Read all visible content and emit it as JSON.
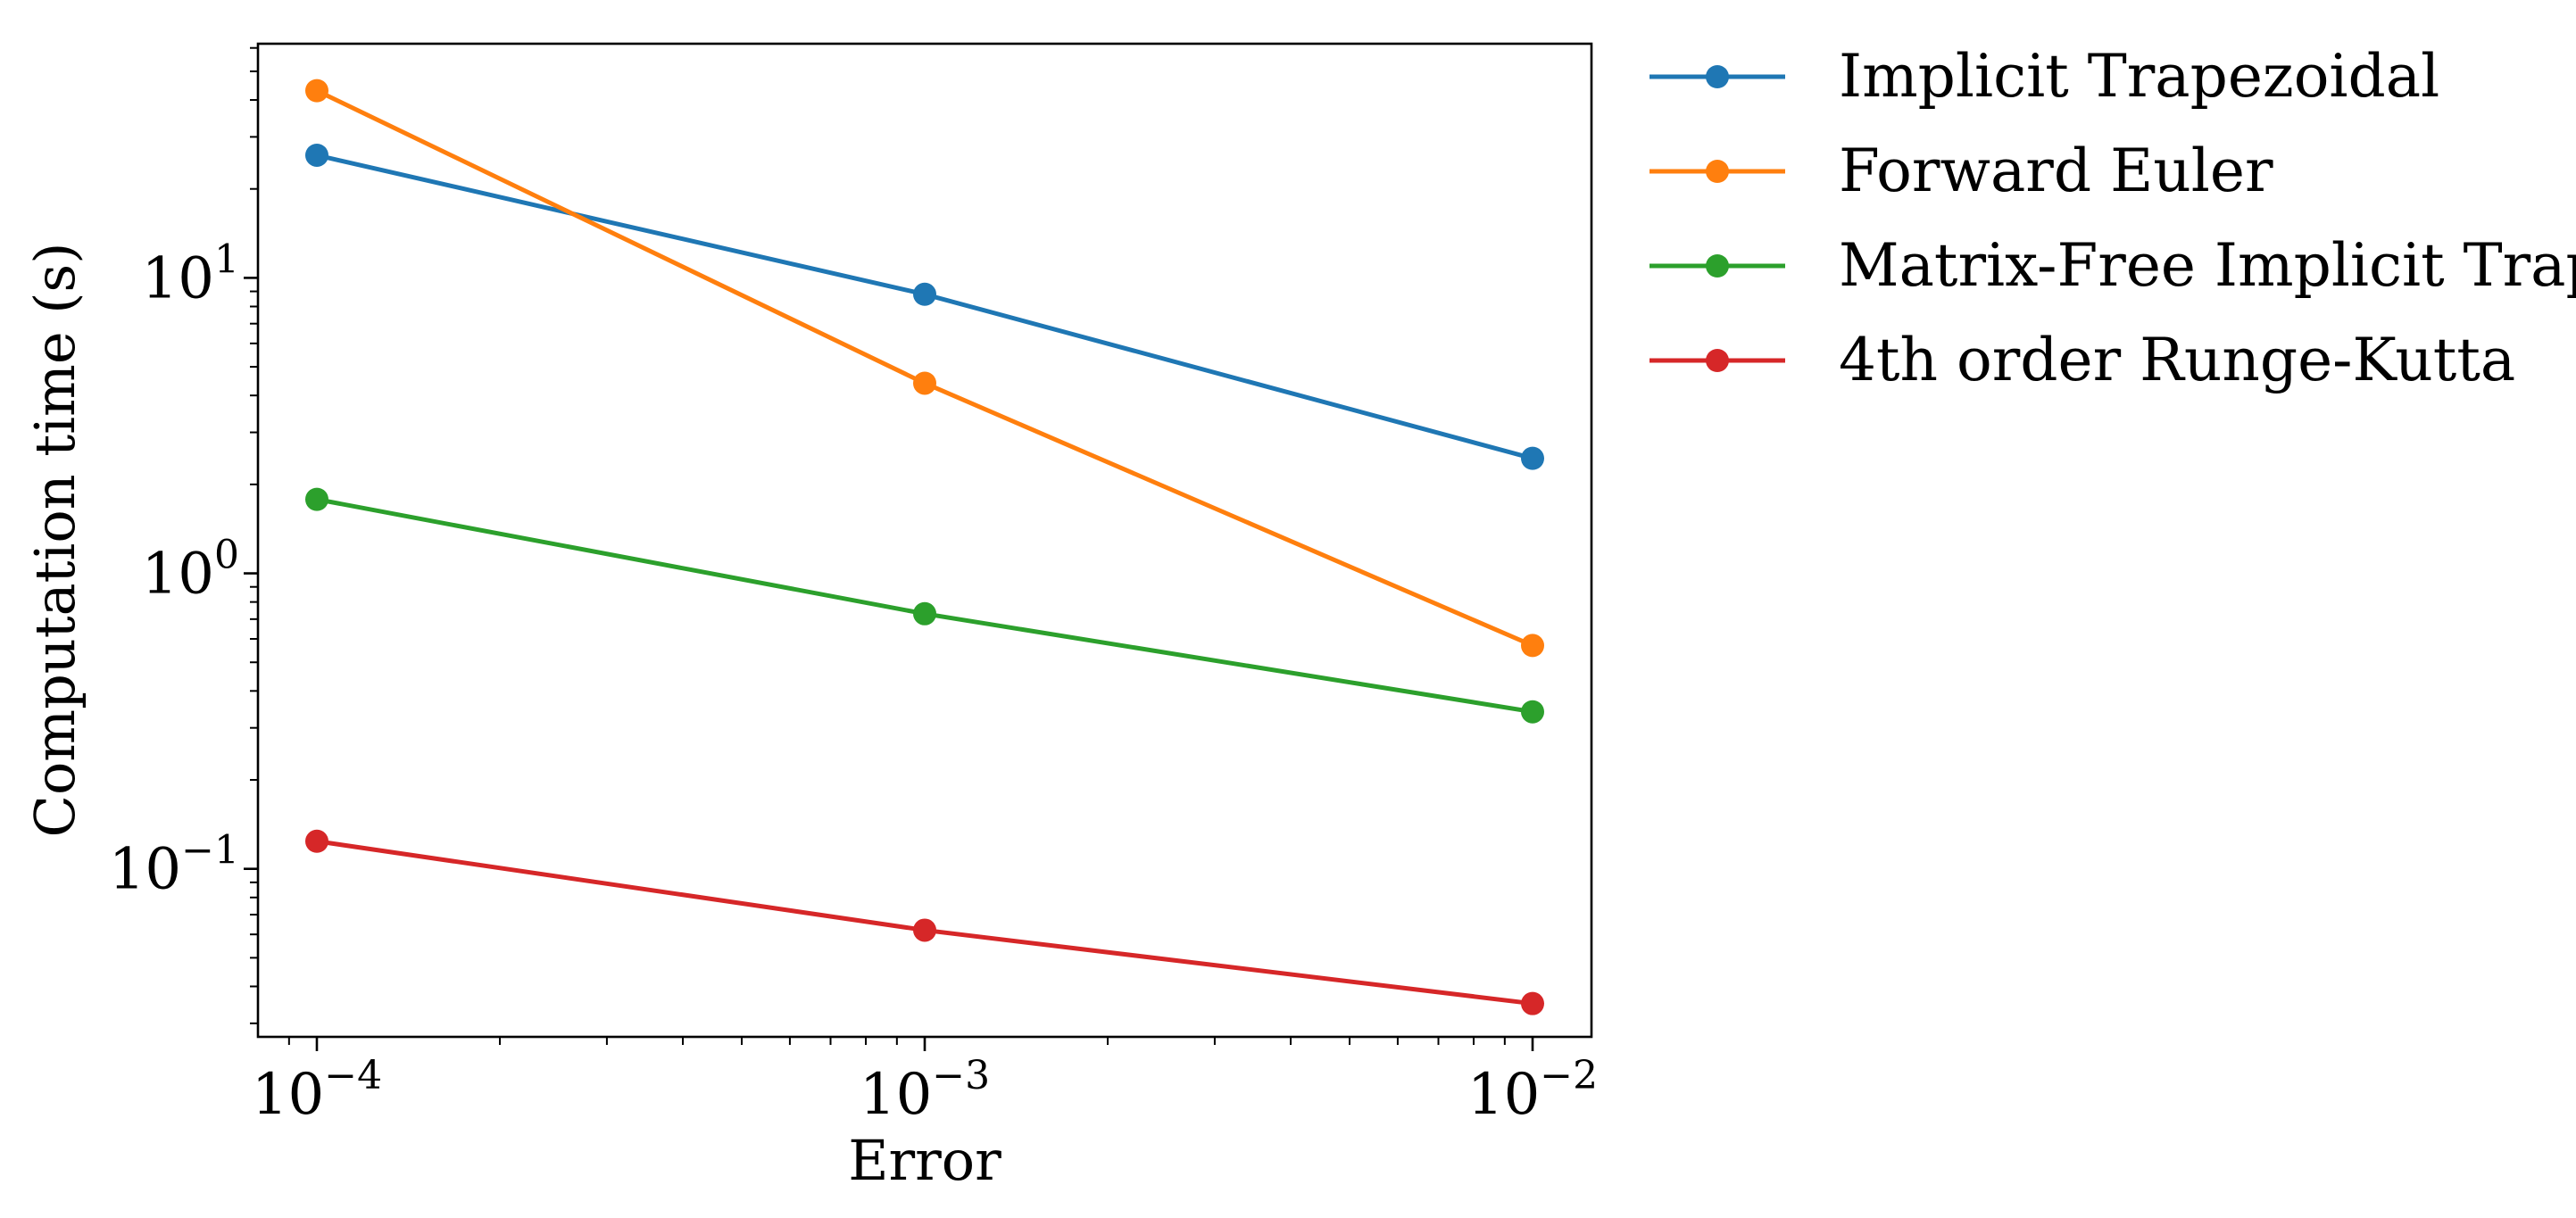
{
  "chart_data": {
    "type": "line",
    "title": "",
    "xlabel": "Error",
    "ylabel": "Computation time (s)",
    "xscale": "log",
    "yscale": "log",
    "xlim": [
      8e-05,
      0.0125
    ],
    "ylim": [
      0.027,
      62
    ],
    "grid": false,
    "legend_position": "outside-right-top",
    "x": [
      0.0001,
      0.001,
      0.01
    ],
    "x_ticks": [
      {
        "value": 0.0001,
        "base": "10",
        "exp": "−4"
      },
      {
        "value": 0.001,
        "base": "10",
        "exp": "−3"
      },
      {
        "value": 0.01,
        "base": "10",
        "exp": "−2"
      }
    ],
    "y_ticks": [
      {
        "value": 0.1,
        "base": "10",
        "exp": "−1"
      },
      {
        "value": 1,
        "base": "10",
        "exp": "0"
      },
      {
        "value": 10,
        "base": "10",
        "exp": "1"
      }
    ],
    "series": [
      {
        "name": "Implicit Trapezoidal",
        "color": "#1f77b4",
        "values": [
          26.0,
          8.8,
          2.45
        ]
      },
      {
        "name": "Forward Euler",
        "color": "#ff7f0e",
        "values": [
          43.0,
          4.4,
          0.57
        ]
      },
      {
        "name": "Matrix-Free Implicit Trap",
        "color": "#2ca02c",
        "values": [
          1.78,
          0.73,
          0.34
        ]
      },
      {
        "name": "4th order Runge-Kutta",
        "color": "#d62728",
        "values": [
          0.124,
          0.062,
          0.035
        ]
      }
    ]
  }
}
